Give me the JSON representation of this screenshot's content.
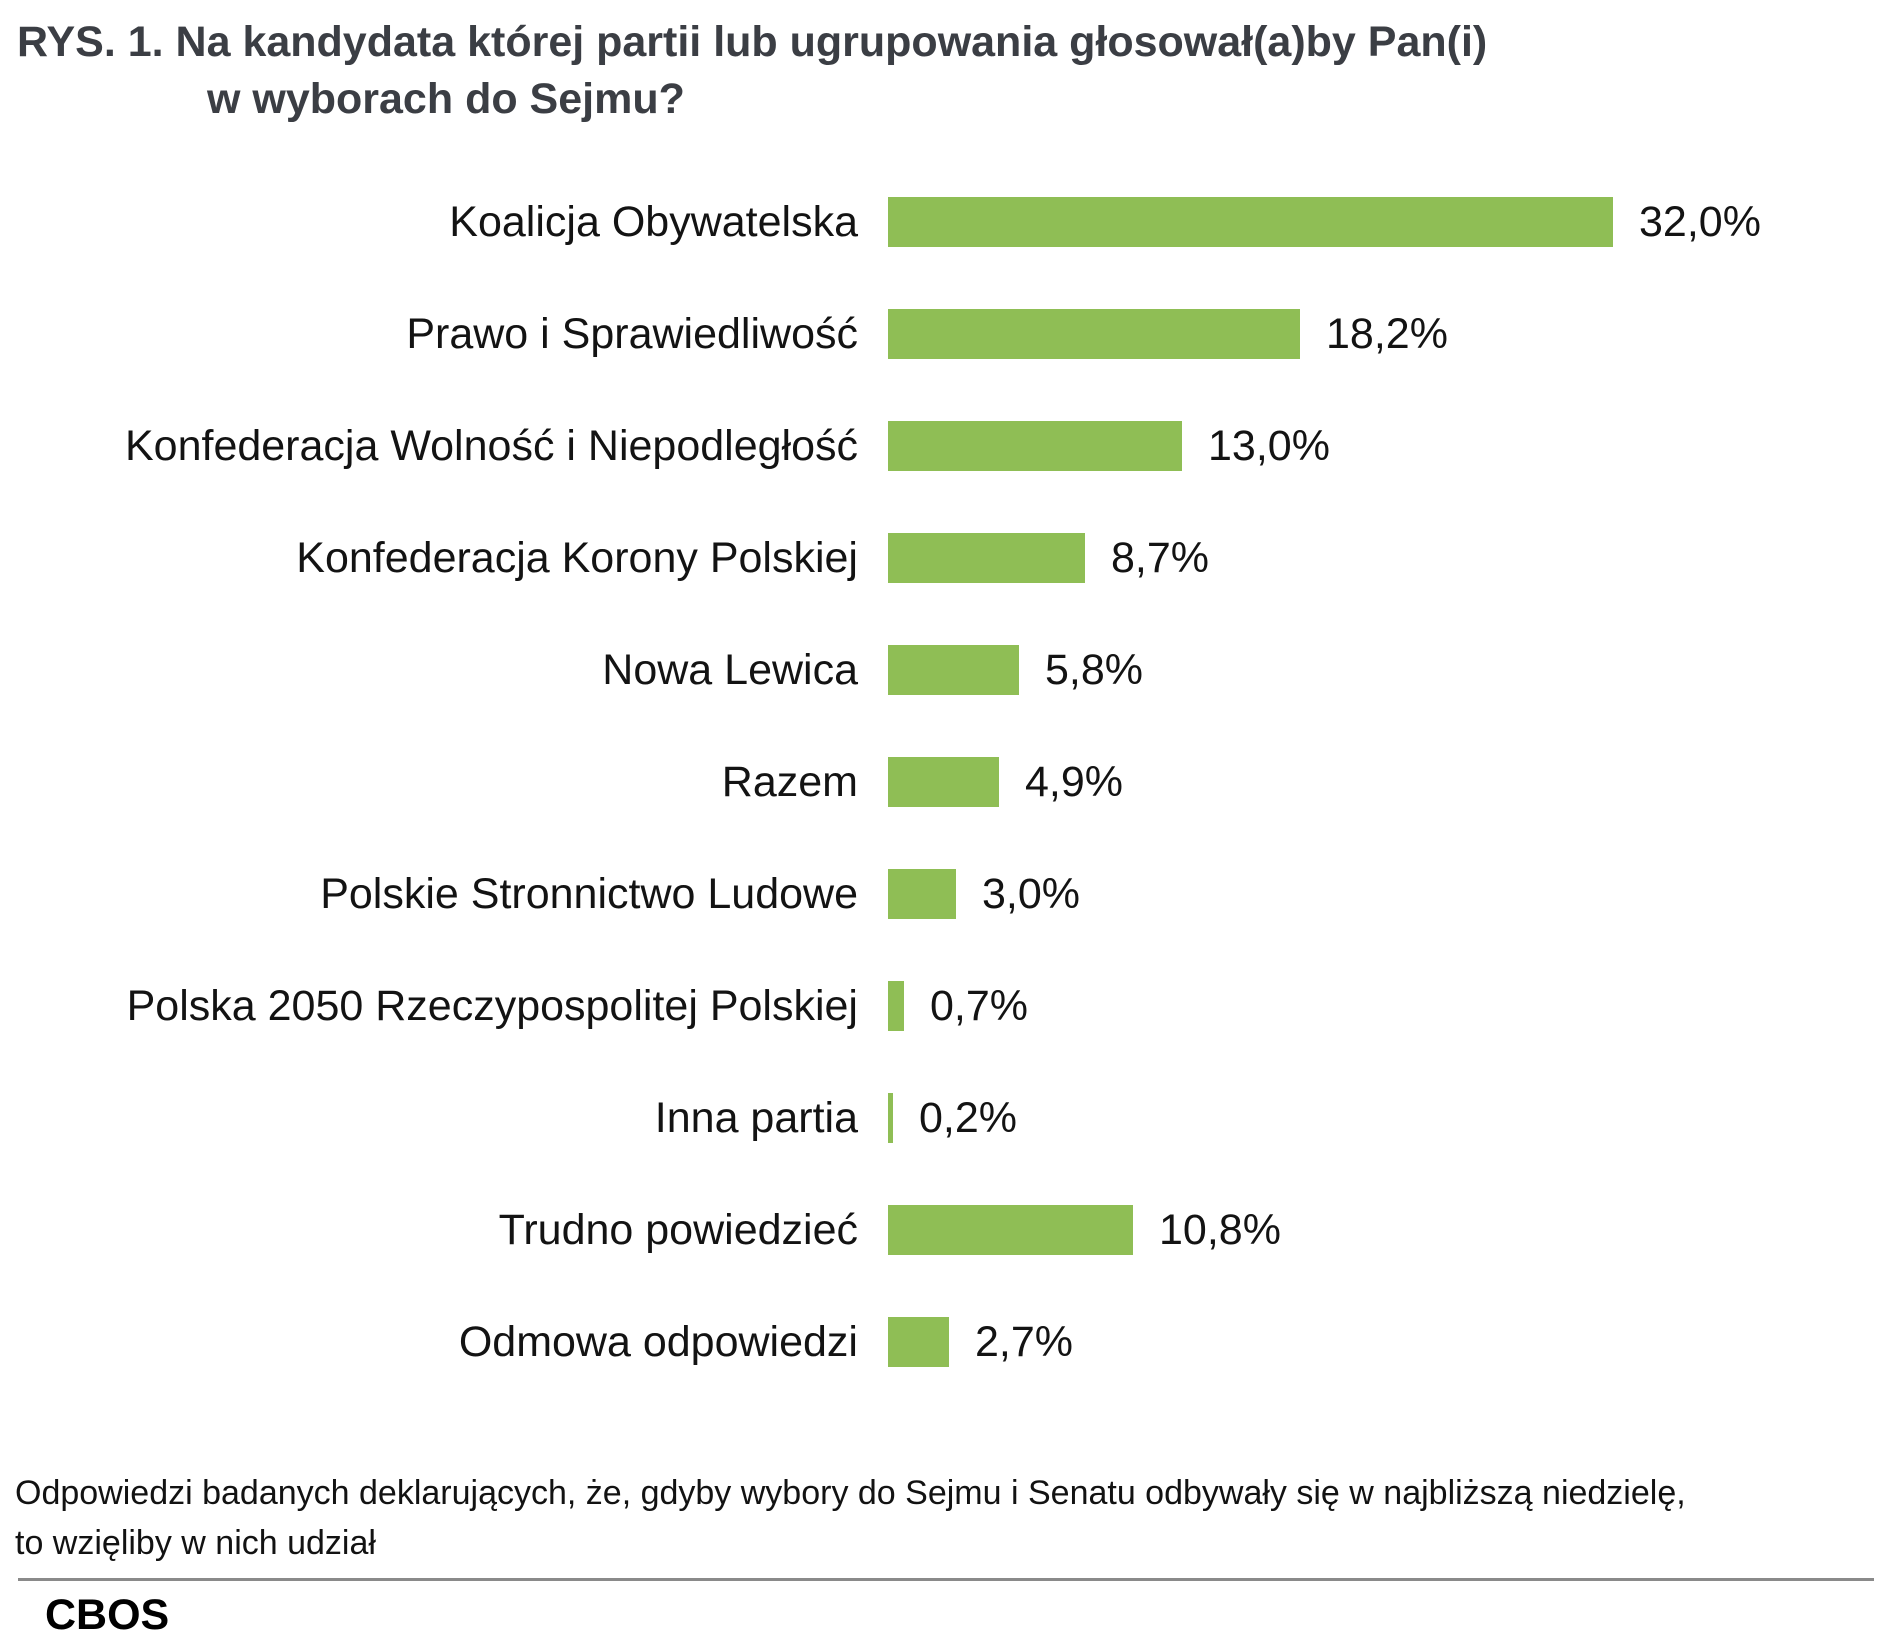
{
  "title": {
    "prefix": "RYS. 1.",
    "line1": "Na kandydata której partii lub ugrupowania głosował(a)by Pan(i)",
    "line2": "w wyborach do Sejmu?"
  },
  "chart_data": {
    "type": "bar",
    "orientation": "horizontal",
    "title": "Na kandydata której partii lub ugrupowania głosował(a)by Pan(i) w wyborach do Sejmu?",
    "xlabel": "",
    "ylabel": "",
    "unit": "%",
    "xlim": [
      0,
      38.8
    ],
    "grid": false,
    "legend": false,
    "bar_color": "#8FBE55",
    "categories": [
      "Koalicja Obywatelska",
      "Prawo i Sprawiedliwość",
      "Konfederacja Wolność i Niepodległość",
      "Konfederacja Korony Polskiej",
      "Nowa Lewica",
      "Razem",
      "Polskie Stronnictwo Ludowe",
      "Polska 2050 Rzeczypospolitej Polskiej",
      "Inna partia",
      "Trudno powiedzieć",
      "Odmowa odpowiedzi"
    ],
    "values": [
      32.0,
      18.2,
      13.0,
      8.7,
      5.8,
      4.9,
      3.0,
      0.7,
      0.2,
      10.8,
      2.7
    ],
    "value_labels": [
      "32,0%",
      "18,2%",
      "13,0%",
      "8,7%",
      "5,8%",
      "4,9%",
      "3,0%",
      "0,7%",
      "0,2%",
      "10,8%",
      "2,7%"
    ]
  },
  "footnote": {
    "lines": [
      "Odpowiedzi badanych deklarujących, że, gdyby wybory do Sejmu i Senatu odbywały się w najbliższą niedzielę,",
      "to wzięliby w nich udział"
    ]
  },
  "branding": "CBOS"
}
